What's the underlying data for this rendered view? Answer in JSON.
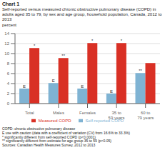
{
  "chart_data": {
    "type": "bar",
    "title": "Chart 1",
    "subtitle": "Self-reported versus measured chronic obstructive pulmonary disease (COPD) in adults aged 35 to 79, by sex and age group, household population, Canada, 2012 to 2013",
    "ylabel": "percent",
    "categories": [
      "Total",
      "Males",
      "Females",
      "35 to 59 years",
      "60 to 79 years"
    ],
    "series": [
      {
        "name": "Self-reported COPD",
        "color": "#7fb3d3",
        "values": [
          3.0,
          4.1,
          3.0,
          2.0,
          6.1
        ],
        "annotations": [
          "E",
          "E",
          "E",
          "E",
          "**"
        ]
      },
      {
        "name": "Measured COPD",
        "color": "#d93025",
        "values": [
          11.1,
          9.1,
          12.1,
          12.1,
          8.1
        ],
        "annotations": [
          "*",
          "**",
          "*",
          "*",
          null
        ]
      }
    ],
    "ylim": [
      0,
      14
    ],
    "yticks": [
      0,
      2,
      4,
      6,
      8,
      10,
      12,
      14
    ],
    "grid": true,
    "legend": "bottom",
    "footnotes": [
      "COPD: chronic obstructive pulmonary disease",
      "E use with caution (data with a coefficient of variation (CV) from 16.6% to 33.3%)",
      "* significantly different from self-reported COPD (p<0.0001)",
      "** significantly different from estimate for age group 35 to 59 (p<0.05)"
    ],
    "source": "Sources: Canadian Health Measures Survey, 2012 to 2013"
  }
}
